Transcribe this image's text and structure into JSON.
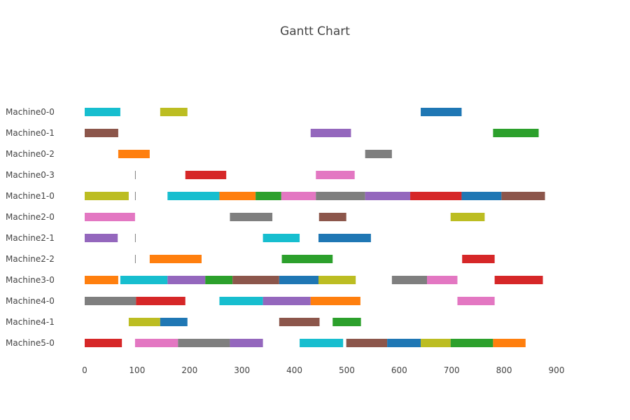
{
  "chart_data": {
    "type": "gantt",
    "title": "Gantt Chart",
    "xlim": [
      0,
      900
    ],
    "x_ticks": [
      0,
      100,
      200,
      300,
      400,
      500,
      600,
      700,
      800,
      900
    ],
    "grid": false,
    "legend": "none",
    "machines": [
      "Machine0-0",
      "Machine0-1",
      "Machine0-2",
      "Machine0-3",
      "Machine1-0",
      "Machine2-0",
      "Machine2-1",
      "Machine2-2",
      "Machine3-0",
      "Machine4-0",
      "Machine4-1",
      "Machine5-0"
    ],
    "colors": {
      "blue": "#1f77b4",
      "orange": "#ff7f0e",
      "green": "#2ca02c",
      "red": "#d62728",
      "purple": "#9467bd",
      "brown": "#8c564b",
      "pink": "#e377c2",
      "gray": "#7f7f7f",
      "olive": "#bcbd22",
      "cyan": "#17becf"
    },
    "tasks": [
      {
        "machine": "Machine0-0",
        "start": 0,
        "end": 68,
        "color": "cyan"
      },
      {
        "machine": "Machine0-0",
        "start": 144,
        "end": 196,
        "color": "olive"
      },
      {
        "machine": "Machine0-0",
        "start": 641,
        "end": 719,
        "color": "blue"
      },
      {
        "machine": "Machine0-1",
        "start": 0,
        "end": 64,
        "color": "brown"
      },
      {
        "machine": "Machine0-1",
        "start": 431,
        "end": 508,
        "color": "purple"
      },
      {
        "machine": "Machine0-1",
        "start": 779,
        "end": 866,
        "color": "green"
      },
      {
        "machine": "Machine0-2",
        "start": 64,
        "end": 124,
        "color": "orange"
      },
      {
        "machine": "Machine0-2",
        "start": 535,
        "end": 586,
        "color": "gray"
      },
      {
        "machine": "Machine0-3",
        "start": 96,
        "end": 97,
        "color": "gray"
      },
      {
        "machine": "Machine0-3",
        "start": 192,
        "end": 270,
        "color": "red"
      },
      {
        "machine": "Machine0-3",
        "start": 441,
        "end": 515,
        "color": "pink"
      },
      {
        "machine": "Machine1-0",
        "start": 0,
        "end": 84,
        "color": "olive"
      },
      {
        "machine": "Machine1-0",
        "start": 96,
        "end": 97,
        "color": "gray"
      },
      {
        "machine": "Machine1-0",
        "start": 158,
        "end": 257,
        "color": "cyan"
      },
      {
        "machine": "Machine1-0",
        "start": 257,
        "end": 326,
        "color": "orange"
      },
      {
        "machine": "Machine1-0",
        "start": 326,
        "end": 375,
        "color": "green"
      },
      {
        "machine": "Machine1-0",
        "start": 375,
        "end": 441,
        "color": "pink"
      },
      {
        "machine": "Machine1-0",
        "start": 441,
        "end": 535,
        "color": "gray"
      },
      {
        "machine": "Machine1-0",
        "start": 535,
        "end": 621,
        "color": "purple"
      },
      {
        "machine": "Machine1-0",
        "start": 621,
        "end": 719,
        "color": "red"
      },
      {
        "machine": "Machine1-0",
        "start": 719,
        "end": 795,
        "color": "blue"
      },
      {
        "machine": "Machine1-0",
        "start": 795,
        "end": 878,
        "color": "brown"
      },
      {
        "machine": "Machine2-0",
        "start": 0,
        "end": 96,
        "color": "pink"
      },
      {
        "machine": "Machine2-0",
        "start": 277,
        "end": 358,
        "color": "gray"
      },
      {
        "machine": "Machine2-0",
        "start": 447,
        "end": 499,
        "color": "brown"
      },
      {
        "machine": "Machine2-0",
        "start": 698,
        "end": 763,
        "color": "olive"
      },
      {
        "machine": "Machine2-1",
        "start": 0,
        "end": 63,
        "color": "purple"
      },
      {
        "machine": "Machine2-1",
        "start": 96,
        "end": 97,
        "color": "gray"
      },
      {
        "machine": "Machine2-1",
        "start": 340,
        "end": 410,
        "color": "cyan"
      },
      {
        "machine": "Machine2-1",
        "start": 446,
        "end": 546,
        "color": "blue"
      },
      {
        "machine": "Machine2-2",
        "start": 96,
        "end": 97,
        "color": "gray"
      },
      {
        "machine": "Machine2-2",
        "start": 124,
        "end": 223,
        "color": "orange"
      },
      {
        "machine": "Machine2-2",
        "start": 376,
        "end": 473,
        "color": "green"
      },
      {
        "machine": "Machine2-2",
        "start": 720,
        "end": 782,
        "color": "red"
      },
      {
        "machine": "Machine3-0",
        "start": 0,
        "end": 64,
        "color": "orange"
      },
      {
        "machine": "Machine3-0",
        "start": 68,
        "end": 158,
        "color": "cyan"
      },
      {
        "machine": "Machine3-0",
        "start": 158,
        "end": 230,
        "color": "purple"
      },
      {
        "machine": "Machine3-0",
        "start": 230,
        "end": 282,
        "color": "green"
      },
      {
        "machine": "Machine3-0",
        "start": 282,
        "end": 371,
        "color": "brown"
      },
      {
        "machine": "Machine3-0",
        "start": 371,
        "end": 446,
        "color": "blue"
      },
      {
        "machine": "Machine3-0",
        "start": 446,
        "end": 517,
        "color": "olive"
      },
      {
        "machine": "Machine3-0",
        "start": 586,
        "end": 653,
        "color": "gray"
      },
      {
        "machine": "Machine3-0",
        "start": 653,
        "end": 711,
        "color": "pink"
      },
      {
        "machine": "Machine3-0",
        "start": 782,
        "end": 874,
        "color": "red"
      },
      {
        "machine": "Machine4-0",
        "start": 0,
        "end": 98,
        "color": "gray"
      },
      {
        "machine": "Machine4-0",
        "start": 98,
        "end": 192,
        "color": "red"
      },
      {
        "machine": "Machine4-0",
        "start": 257,
        "end": 340,
        "color": "cyan"
      },
      {
        "machine": "Machine4-0",
        "start": 340,
        "end": 431,
        "color": "purple"
      },
      {
        "machine": "Machine4-0",
        "start": 431,
        "end": 526,
        "color": "orange"
      },
      {
        "machine": "Machine4-0",
        "start": 711,
        "end": 782,
        "color": "pink"
      },
      {
        "machine": "Machine4-1",
        "start": 84,
        "end": 144,
        "color": "olive"
      },
      {
        "machine": "Machine4-1",
        "start": 144,
        "end": 196,
        "color": "blue"
      },
      {
        "machine": "Machine4-1",
        "start": 371,
        "end": 448,
        "color": "brown"
      },
      {
        "machine": "Machine4-1",
        "start": 473,
        "end": 527,
        "color": "green"
      },
      {
        "machine": "Machine5-0",
        "start": 0,
        "end": 71,
        "color": "red"
      },
      {
        "machine": "Machine5-0",
        "start": 96,
        "end": 178,
        "color": "pink"
      },
      {
        "machine": "Machine5-0",
        "start": 178,
        "end": 277,
        "color": "gray"
      },
      {
        "machine": "Machine5-0",
        "start": 277,
        "end": 340,
        "color": "purple"
      },
      {
        "machine": "Machine5-0",
        "start": 410,
        "end": 493,
        "color": "cyan"
      },
      {
        "machine": "Machine5-0",
        "start": 499,
        "end": 577,
        "color": "brown"
      },
      {
        "machine": "Machine5-0",
        "start": 577,
        "end": 641,
        "color": "blue"
      },
      {
        "machine": "Machine5-0",
        "start": 641,
        "end": 698,
        "color": "olive"
      },
      {
        "machine": "Machine5-0",
        "start": 698,
        "end": 779,
        "color": "green"
      },
      {
        "machine": "Machine5-0",
        "start": 779,
        "end": 841,
        "color": "orange"
      }
    ]
  }
}
